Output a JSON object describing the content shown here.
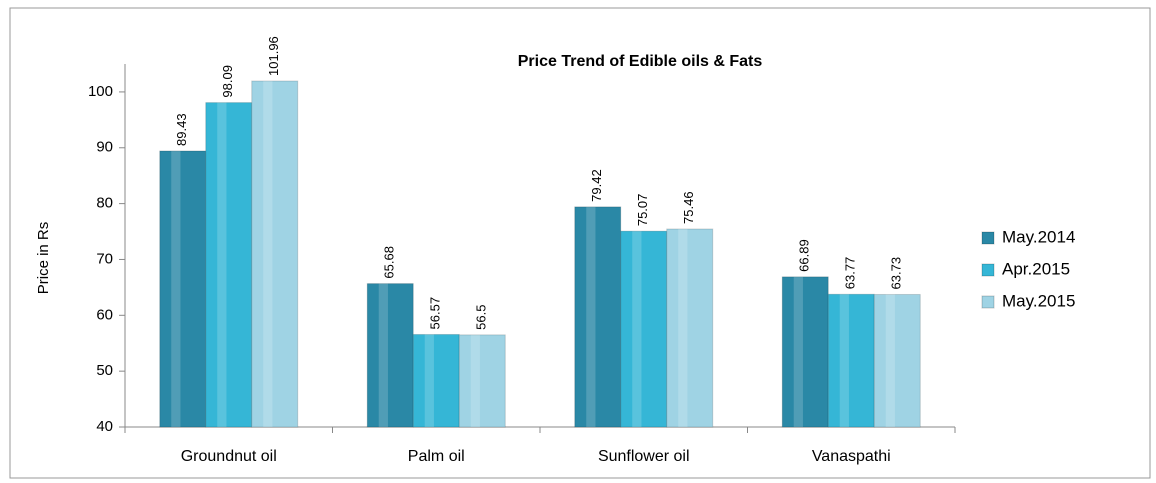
{
  "chart_data": {
    "type": "bar",
    "title": "Price Trend of Edible oils & Fats",
    "y_label": "Price in Rs",
    "categories": [
      "Groundnut oil",
      "Palm oil",
      "Sunflower oil",
      "Vanaspathi"
    ],
    "series": [
      {
        "name": "May.2014",
        "color": "#2a88a6",
        "values": [
          89.43,
          65.68,
          79.42,
          66.89
        ]
      },
      {
        "name": "Apr.2015",
        "color": "#35b6d6",
        "values": [
          98.09,
          56.57,
          75.07,
          63.77
        ]
      },
      {
        "name": "May.2015",
        "color": "#9fd3e4",
        "values": [
          101.96,
          56.5,
          75.46,
          63.73
        ]
      }
    ],
    "ylim": [
      40,
      105
    ],
    "yticks": [
      40,
      50,
      60,
      70,
      80,
      90,
      100
    ],
    "legend": "right"
  }
}
